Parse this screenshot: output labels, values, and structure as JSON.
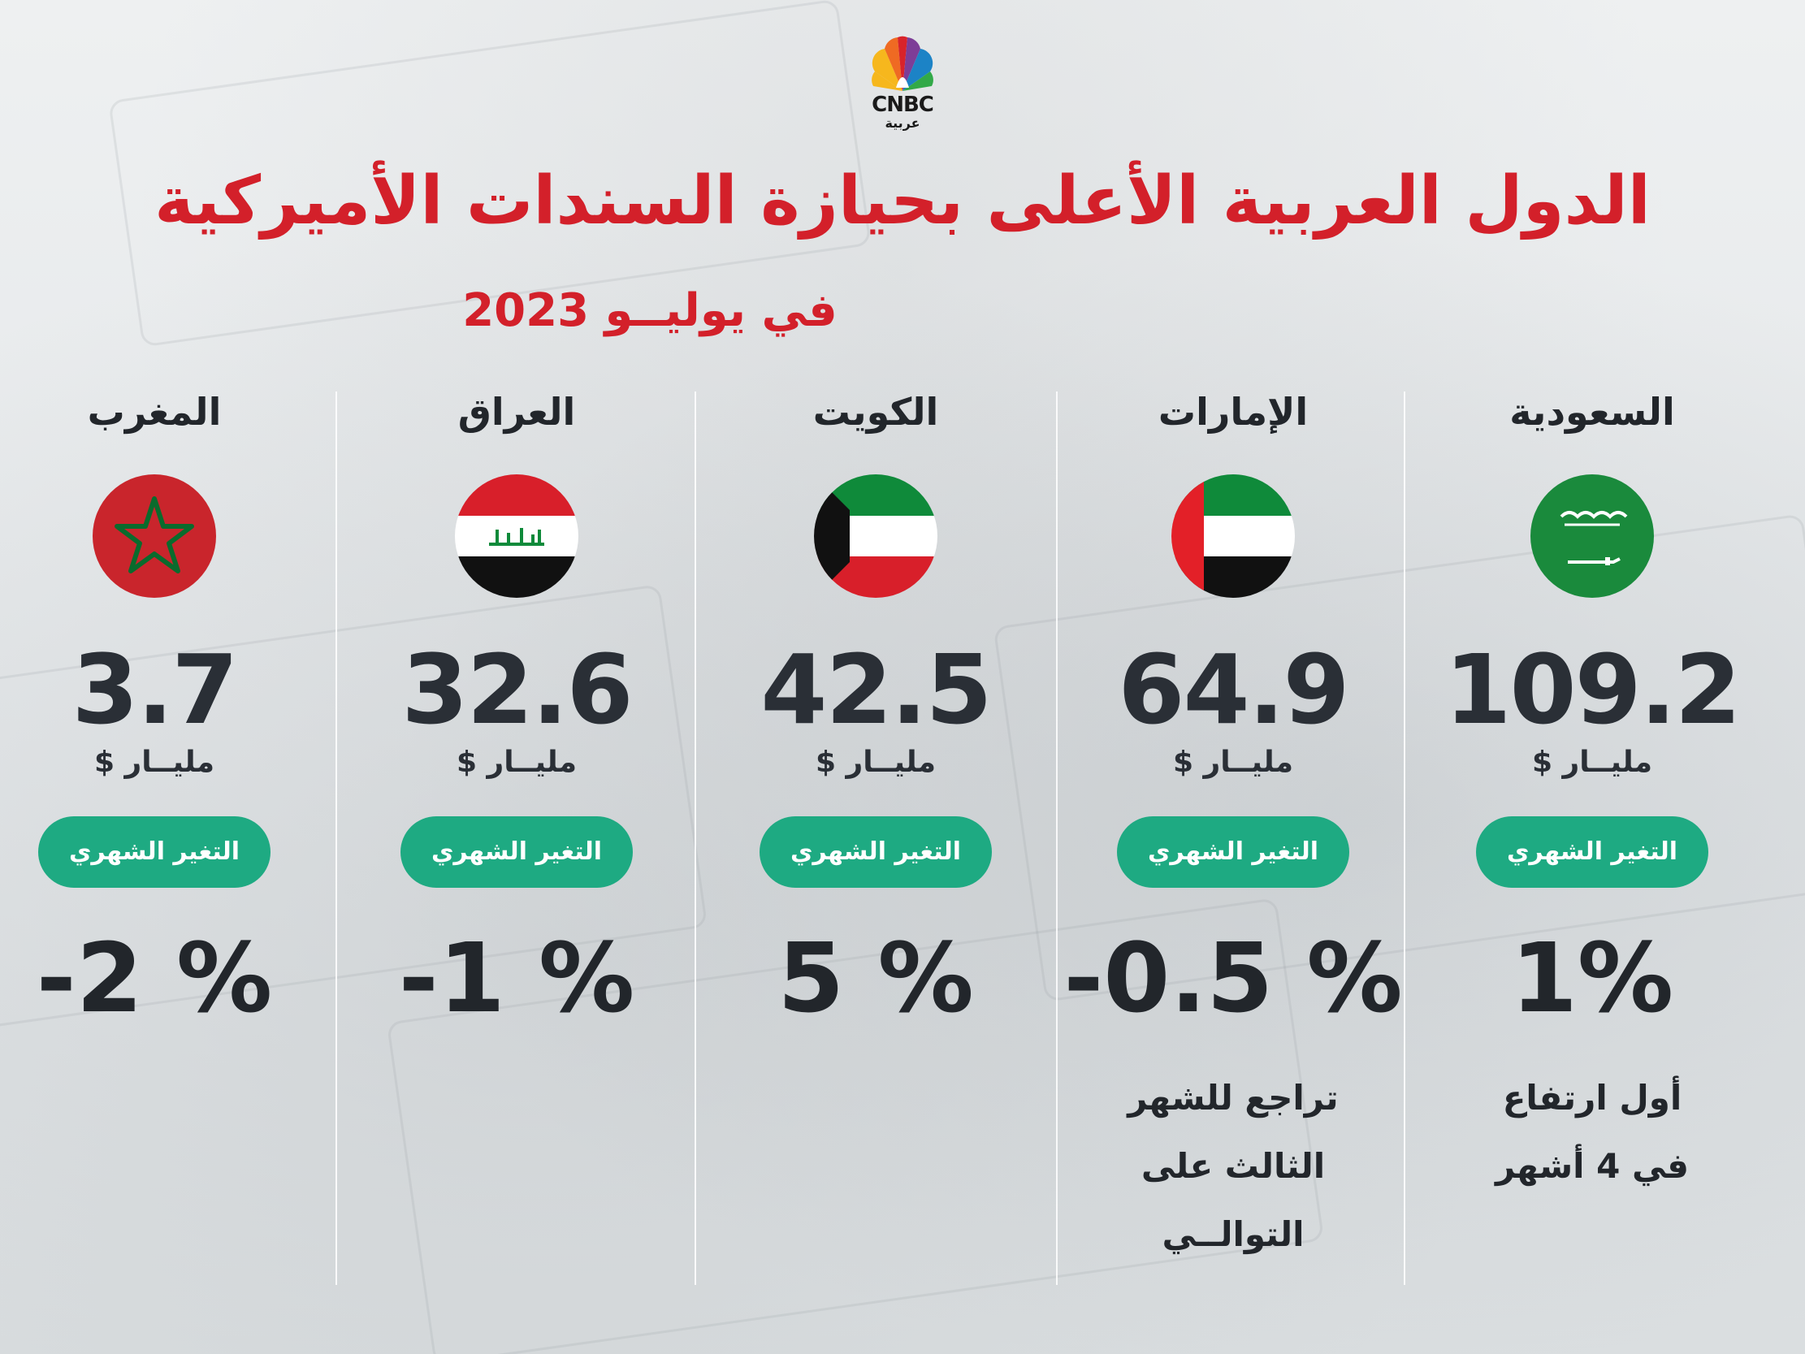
{
  "logo": {
    "brand": "CNBC",
    "sub": "عربية"
  },
  "header": {
    "title": "الدول العربية الأعلى بحيازة السندات الأميركية",
    "subtitle": "في يوليــو 2023"
  },
  "change_label": "التغير الشهري",
  "countries": [
    {
      "name": "السعودية",
      "value": "109.2",
      "unit": "مليــار $",
      "change": "1%",
      "note_line1": "أول ارتفاع",
      "note_line2": "في 4 أشهر",
      "note_line3": ""
    },
    {
      "name": "الإمارات",
      "value": "64.9",
      "unit": "مليــار $",
      "change": "-0.5 %",
      "note_line1": "تراجع للشهر",
      "note_line2": "الثالث على",
      "note_line3": "التوالــي"
    },
    {
      "name": "الكويت",
      "value": "42.5",
      "unit": "مليــار $",
      "change": "5 %",
      "note_line1": "",
      "note_line2": "",
      "note_line3": ""
    },
    {
      "name": "العراق",
      "value": "32.6",
      "unit": "مليــار $",
      "change": "-1 %",
      "note_line1": "",
      "note_line2": "",
      "note_line3": ""
    },
    {
      "name": "المغرب",
      "value": "3.7",
      "unit": "مليــار $",
      "change": "-2 %",
      "note_line1": "",
      "note_line2": "",
      "note_line3": ""
    }
  ],
  "flags": {
    "saudi_arabia": "flag-saudi-arabia-icon",
    "uae": "flag-uae-icon",
    "kuwait": "flag-kuwait-icon",
    "iraq": "flag-iraq-icon",
    "morocco": "flag-morocco-icon"
  },
  "colors": {
    "title": "#d3202a",
    "pill": "#1eaa82",
    "text": "#22262b"
  }
}
